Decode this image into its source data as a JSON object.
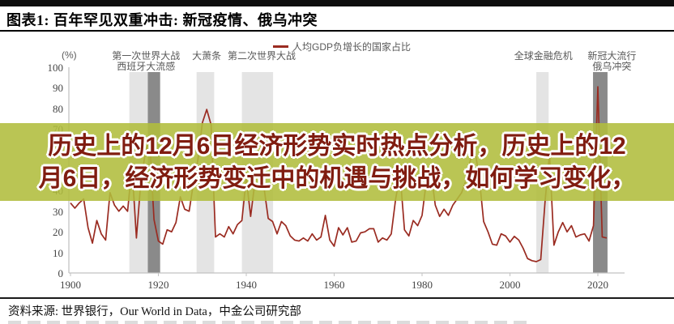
{
  "header": {
    "title": "图表1: 百年罕见双重冲击: 新冠疫情、俄乌冲突"
  },
  "overlay": {
    "lines": [
      "历史上的12月6日经济形势实时热点分析，历史上的12",
      "月6日，经济形势变迁中的机遇与挑战，如何学习变化，"
    ]
  },
  "footer": {
    "source": "资料来源: 世界银行，Our World in Data，中金公司研究部"
  },
  "colors": {
    "line": "#9a2b21",
    "band_light": "#e4e4e4",
    "band_dark": "#8a8a8a",
    "axis": "#c2c2c2",
    "tick_text": "#444444",
    "annotation_text": "#595959",
    "overlay_bg": "rgba(177,189,60,0.88)",
    "overlay_text": "#801c10"
  },
  "chart_data": {
    "type": "line",
    "legend": "人均GDP负增长的国家占比",
    "ylabel": "(%)",
    "ylim": [
      0,
      100
    ],
    "yticks": [
      0,
      10,
      20,
      30,
      40,
      50,
      60,
      70,
      80,
      90,
      100
    ],
    "xticks": [
      1900,
      1920,
      1940,
      1960,
      1980,
      2000,
      2020
    ],
    "xlim": [
      1900,
      2026
    ],
    "grid": false,
    "legend_position": "top",
    "bands": [
      {
        "from": 1913.4,
        "to": 1917.6,
        "shade": "light",
        "label": "第一次世界大战"
      },
      {
        "from": 1917.6,
        "to": 1920.4,
        "shade": "dark",
        "label": "西班牙大流感"
      },
      {
        "from": 1928.7,
        "to": 1932.7,
        "shade": "light",
        "label": "大萧条"
      },
      {
        "from": 1939.0,
        "to": 1946.1,
        "shade": "light",
        "label": "第二次世界大战"
      },
      {
        "from": 2006.0,
        "to": 2008.8,
        "shade": "light",
        "label": "全球金融危机"
      },
      {
        "from": 2018.9,
        "to": 2022.2,
        "shade": "dark",
        "label": "新冠大流行 俄乌冲突"
      }
    ],
    "annotations": [
      {
        "lines": [
          "第一次世界大战",
          "西班牙大流感"
        ],
        "year": 1917.2
      },
      {
        "lines": [
          "大萧条"
        ],
        "year": 1931
      },
      {
        "lines": [
          "第二次世界大战"
        ],
        "year": 1943.5
      },
      {
        "lines": [
          "全球金融危机"
        ],
        "year": 2007.6
      },
      {
        "lines": [
          "新冠大流行",
          "俄乌冲突"
        ],
        "year": 2023.2
      }
    ],
    "points": [
      [
        1900,
        34
      ],
      [
        1901,
        31.5
      ],
      [
        1902,
        34
      ],
      [
        1903,
        36
      ],
      [
        1904,
        22
      ],
      [
        1905,
        14.5
      ],
      [
        1906,
        25.5
      ],
      [
        1907,
        19
      ],
      [
        1908,
        16
      ],
      [
        1909,
        39
      ],
      [
        1910,
        33
      ],
      [
        1911,
        30
      ],
      [
        1912,
        32.5
      ],
      [
        1913,
        30
      ],
      [
        1914,
        52
      ],
      [
        1915,
        17
      ],
      [
        1916,
        44
      ],
      [
        1917,
        58
      ],
      [
        1918,
        66
      ],
      [
        1919,
        26
      ],
      [
        1920,
        15.5
      ],
      [
        1921,
        14
      ],
      [
        1922,
        21
      ],
      [
        1923,
        20
      ],
      [
        1924,
        24.5
      ],
      [
        1925,
        37
      ],
      [
        1926,
        31
      ],
      [
        1927,
        30
      ],
      [
        1928,
        44
      ],
      [
        1929,
        55
      ],
      [
        1930,
        73
      ],
      [
        1931,
        79.5
      ],
      [
        1932,
        72
      ],
      [
        1933,
        17.5
      ],
      [
        1934,
        19
      ],
      [
        1935,
        17.5
      ],
      [
        1936,
        22.5
      ],
      [
        1937,
        19
      ],
      [
        1938,
        23.5
      ],
      [
        1939,
        25.5
      ],
      [
        1940,
        46
      ],
      [
        1941,
        27.5
      ],
      [
        1942,
        45
      ],
      [
        1943,
        48
      ],
      [
        1944,
        42
      ],
      [
        1945,
        26.5
      ],
      [
        1946,
        25
      ],
      [
        1947,
        19
      ],
      [
        1948,
        25
      ],
      [
        1949,
        23
      ],
      [
        1950,
        18
      ],
      [
        1951,
        16
      ],
      [
        1952,
        15.5
      ],
      [
        1953,
        17
      ],
      [
        1954,
        15.5
      ],
      [
        1955,
        19
      ],
      [
        1956,
        16
      ],
      [
        1957,
        17.5
      ],
      [
        1958,
        28
      ],
      [
        1959,
        16
      ],
      [
        1960,
        13
      ],
      [
        1961,
        22
      ],
      [
        1962,
        18.5
      ],
      [
        1963,
        22
      ],
      [
        1964,
        15
      ],
      [
        1965,
        15.5
      ],
      [
        1966,
        19.5
      ],
      [
        1967,
        20
      ],
      [
        1968,
        21.5
      ],
      [
        1969,
        21.5
      ],
      [
        1970,
        15
      ],
      [
        1971,
        17
      ],
      [
        1972,
        16
      ],
      [
        1973,
        19
      ],
      [
        1974,
        36
      ],
      [
        1975,
        48
      ],
      [
        1976,
        21
      ],
      [
        1977,
        18
      ],
      [
        1978,
        25.5
      ],
      [
        1979,
        23
      ],
      [
        1980,
        28
      ],
      [
        1981,
        45
      ],
      [
        1982,
        50
      ],
      [
        1983,
        33
      ],
      [
        1984,
        27.5
      ],
      [
        1985,
        31
      ],
      [
        1986,
        28
      ],
      [
        1987,
        33
      ],
      [
        1988,
        36
      ],
      [
        1989,
        39
      ],
      [
        1990,
        45
      ],
      [
        1991,
        55
      ],
      [
        1992,
        60
      ],
      [
        1993,
        47
      ],
      [
        1994,
        25
      ],
      [
        1995,
        20
      ],
      [
        1996,
        14
      ],
      [
        1997,
        13.5
      ],
      [
        1998,
        19
      ],
      [
        1999,
        18
      ],
      [
        2000,
        15
      ],
      [
        2001,
        17.8
      ],
      [
        2002,
        16
      ],
      [
        2003,
        12
      ],
      [
        2004,
        7
      ],
      [
        2005,
        6
      ],
      [
        2006,
        5.5
      ],
      [
        2007,
        6.5
      ],
      [
        2008,
        35
      ],
      [
        2009,
        58
      ],
      [
        2010,
        13.5
      ],
      [
        2011,
        20
      ],
      [
        2012,
        24.5
      ],
      [
        2013,
        20
      ],
      [
        2014,
        23
      ],
      [
        2015,
        17.5
      ],
      [
        2016,
        18.5
      ],
      [
        2017,
        19
      ],
      [
        2018,
        15.5
      ],
      [
        2019,
        23
      ],
      [
        2020,
        90.5
      ],
      [
        2021,
        17.5
      ],
      [
        2022,
        17
      ]
    ]
  }
}
